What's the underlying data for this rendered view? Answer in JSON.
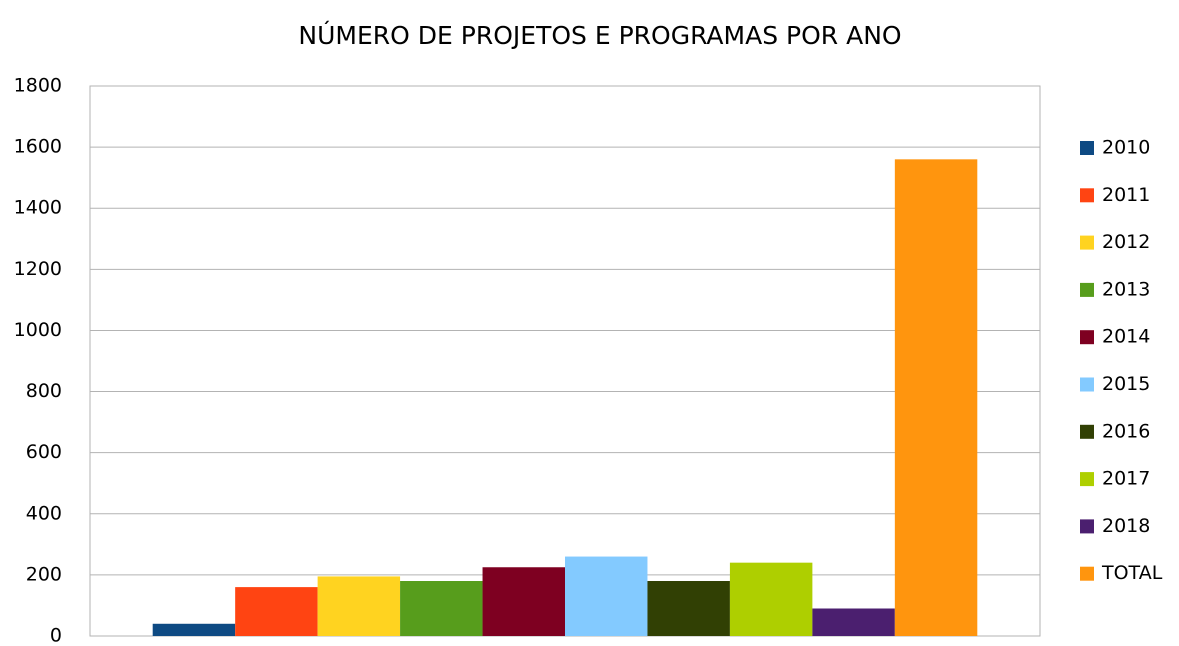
{
  "chart_data": {
    "type": "bar",
    "title": "NÚMERO DE PROJETOS E PROGRAMAS POR ANO",
    "categories": [
      null
    ],
    "series": [
      {
        "name": "2010",
        "color": "#0e4a83",
        "values": [
          40
        ]
      },
      {
        "name": "2011",
        "color": "#ff4412",
        "values": [
          160
        ]
      },
      {
        "name": "2012",
        "color": "#ffd320",
        "values": [
          195
        ]
      },
      {
        "name": "2013",
        "color": "#579d1c",
        "values": [
          180
        ]
      },
      {
        "name": "2014",
        "color": "#7e0021",
        "values": [
          225
        ]
      },
      {
        "name": "2015",
        "color": "#83caff",
        "values": [
          260
        ]
      },
      {
        "name": "2016",
        "color": "#314004",
        "values": [
          180
        ]
      },
      {
        "name": "2017",
        "color": "#aecf00",
        "values": [
          240
        ]
      },
      {
        "name": "2018",
        "color": "#4b1f6f",
        "values": [
          90
        ]
      },
      {
        "name": "TOTAL",
        "color": "#ff950e",
        "values": [
          1560
        ]
      }
    ],
    "ylim": [
      0,
      1800
    ],
    "yticks": [
      0,
      200,
      400,
      600,
      800,
      1000,
      1200,
      1400,
      1600,
      1800
    ],
    "grid": true,
    "legend": "right"
  }
}
